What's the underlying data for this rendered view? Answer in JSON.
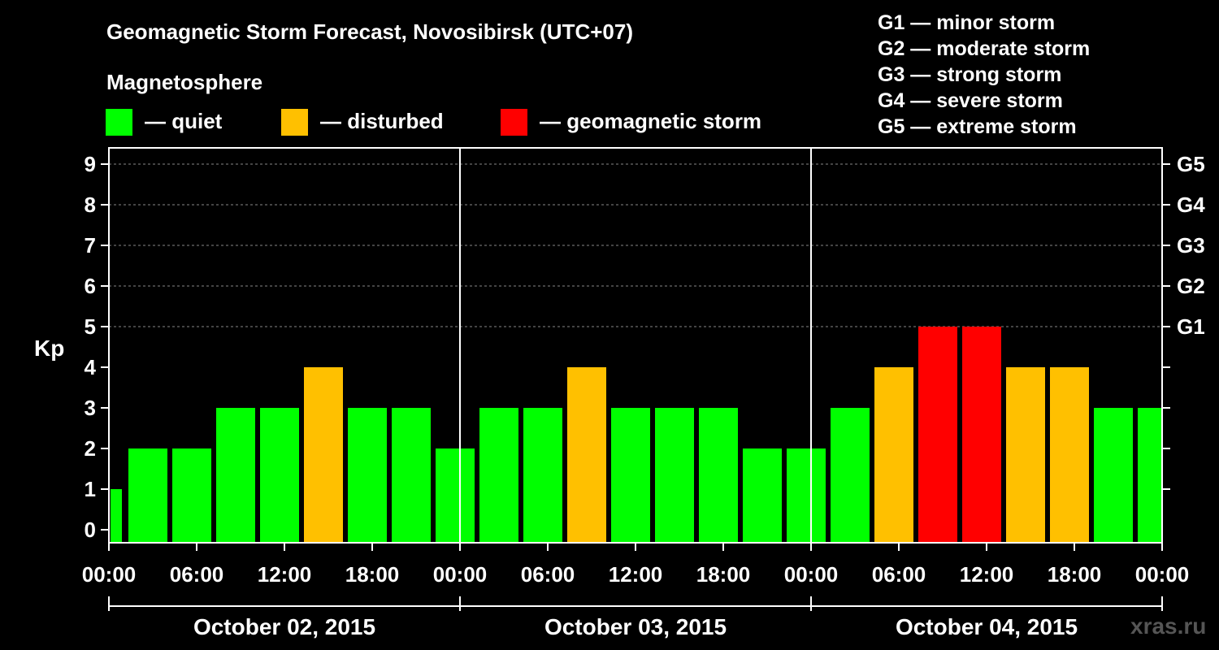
{
  "chart_data": {
    "type": "bar",
    "title": "Geomagnetic Storm Forecast, Novosibirsk (UTC+07)",
    "ylabel": "Kp",
    "ylim": [
      0,
      9
    ],
    "yticks": [
      "0",
      "1",
      "2",
      "3",
      "4",
      "5",
      "6",
      "7",
      "8",
      "9"
    ],
    "right_ticks": [
      {
        "kp": 5,
        "label": "G1"
      },
      {
        "kp": 6,
        "label": "G2"
      },
      {
        "kp": 7,
        "label": "G3"
      },
      {
        "kp": 8,
        "label": "G4"
      },
      {
        "kp": 9,
        "label": "G5"
      }
    ],
    "x_tick_labels": [
      "00:00",
      "06:00",
      "12:00",
      "18:00",
      "00:00",
      "06:00",
      "12:00",
      "18:00",
      "00:00",
      "06:00",
      "12:00",
      "18:00",
      "00:00"
    ],
    "days": [
      "October 02, 2015",
      "October 03, 2015",
      "October 04, 2015"
    ],
    "interval_hours": 3,
    "values": [
      1,
      2,
      2,
      3,
      3,
      4,
      3,
      3,
      2,
      3,
      3,
      4,
      3,
      3,
      3,
      2,
      2,
      3,
      4,
      5,
      5,
      4,
      4,
      3,
      3
    ],
    "levels": [
      "quiet",
      "quiet",
      "quiet",
      "quiet",
      "quiet",
      "disturbed",
      "quiet",
      "quiet",
      "quiet",
      "quiet",
      "quiet",
      "disturbed",
      "quiet",
      "quiet",
      "quiet",
      "quiet",
      "quiet",
      "quiet",
      "disturbed",
      "storm",
      "storm",
      "disturbed",
      "disturbed",
      "quiet",
      "quiet"
    ],
    "colors": {
      "quiet": "#00ff00",
      "disturbed": "#ffc000",
      "storm": "#ff0000"
    }
  },
  "legend": {
    "heading": "Magnetosphere",
    "quiet": "— quiet",
    "disturbed": "— disturbed",
    "storm": "— geomagnetic storm"
  },
  "scale": [
    "G1 — minor storm",
    "G2 — moderate storm",
    "G3 — strong storm",
    "G4 — severe storm",
    "G5 — extreme storm"
  ],
  "watermark": "xras.ru"
}
